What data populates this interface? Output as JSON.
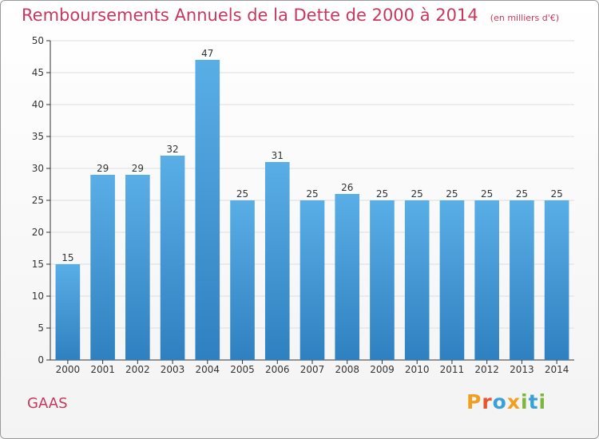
{
  "title": "Remboursements Annuels de la Dette de 2000 à 2014",
  "subtitle": "(en milliers d'€)",
  "commune": "GAAS",
  "logo": {
    "text": "Proxiti",
    "letters": [
      {
        "char": "P",
        "color": "#f0a020"
      },
      {
        "char": "r",
        "color": "#e8542c"
      },
      {
        "char": "o",
        "color": "#3aa0d8"
      },
      {
        "char": "x",
        "color": "#f0a020"
      },
      {
        "char": "i",
        "color": "#7cb73c"
      },
      {
        "char": "t",
        "color": "#3aa0d8"
      },
      {
        "char": "i",
        "color": "#7cb73c"
      }
    ]
  },
  "colors": {
    "bar_top": "#5aaee6",
    "bar_bottom": "#2f80c0",
    "title": "#c8385e",
    "axis": "#333333",
    "grid": "#dddddd"
  },
  "chart_data": {
    "type": "bar",
    "categories": [
      "2000",
      "2001",
      "2002",
      "2003",
      "2004",
      "2005",
      "2006",
      "2007",
      "2008",
      "2009",
      "2010",
      "2011",
      "2012",
      "2013",
      "2014"
    ],
    "values": [
      15,
      29,
      29,
      32,
      47,
      25,
      31,
      25,
      26,
      25,
      25,
      25,
      25,
      25,
      25
    ],
    "data_labels": [
      "15",
      "29",
      "29",
      "32",
      "47",
      "25",
      "31",
      "25",
      "26",
      "25",
      "25",
      "25",
      "25",
      "25",
      "25"
    ],
    "title": "Remboursements Annuels de la Dette de 2000 à 2014",
    "subtitle": "(en milliers d'€)",
    "xlabel": "",
    "ylabel": "",
    "ylim": [
      0,
      50
    ],
    "yticks": [
      0,
      5,
      10,
      15,
      20,
      25,
      30,
      35,
      40,
      45,
      50
    ],
    "grid": true,
    "legend": "none"
  }
}
